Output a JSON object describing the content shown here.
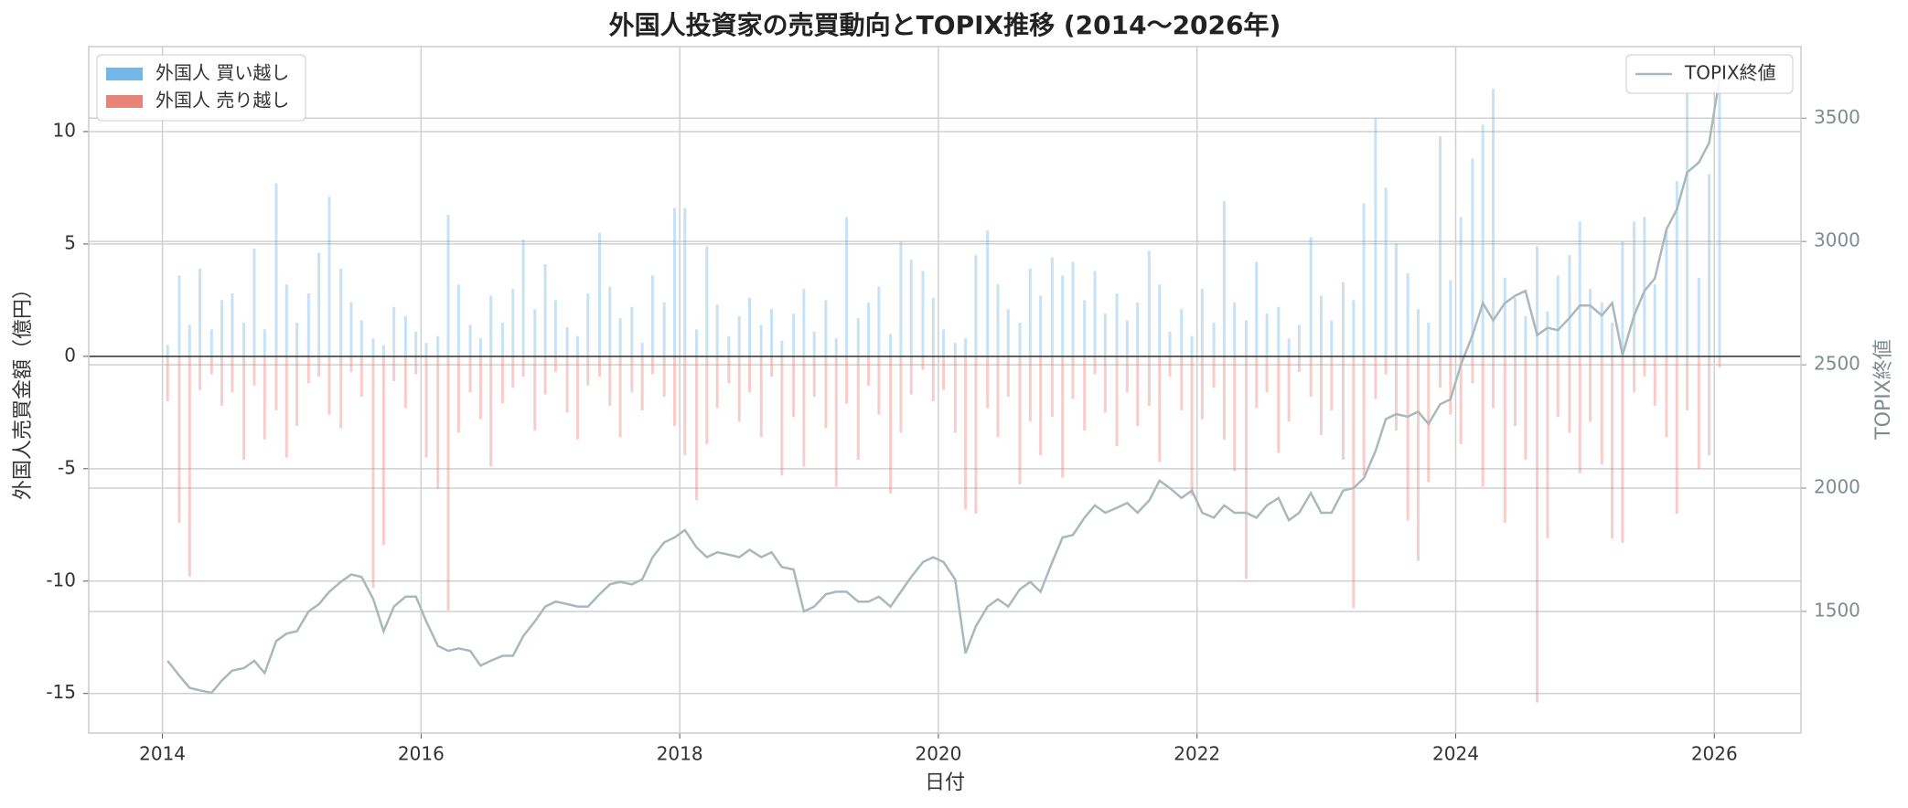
{
  "chart_data": {
    "type": "bar",
    "title": "外国人投資家の売買動向とTOPIX推移 (2014〜2026年)",
    "xlabel": "日付",
    "ylabel": "外国人売買金額（億円）",
    "y2label": "TOPIX終値",
    "x": [
      2014.04,
      2014.13,
      2014.21,
      2014.29,
      2014.38,
      2014.46,
      2014.54,
      2014.63,
      2014.71,
      2014.79,
      2014.88,
      2014.96,
      2015.04,
      2015.13,
      2015.21,
      2015.29,
      2015.38,
      2015.46,
      2015.54,
      2015.63,
      2015.71,
      2015.79,
      2015.88,
      2015.96,
      2016.04,
      2016.13,
      2016.21,
      2016.29,
      2016.38,
      2016.46,
      2016.54,
      2016.63,
      2016.71,
      2016.79,
      2016.88,
      2016.96,
      2017.04,
      2017.13,
      2017.21,
      2017.29,
      2017.38,
      2017.46,
      2017.54,
      2017.63,
      2017.71,
      2017.79,
      2017.88,
      2017.96,
      2018.04,
      2018.13,
      2018.21,
      2018.29,
      2018.38,
      2018.46,
      2018.54,
      2018.63,
      2018.71,
      2018.79,
      2018.88,
      2018.96,
      2019.04,
      2019.13,
      2019.21,
      2019.29,
      2019.38,
      2019.46,
      2019.54,
      2019.63,
      2019.71,
      2019.79,
      2019.88,
      2019.96,
      2020.04,
      2020.13,
      2020.21,
      2020.29,
      2020.38,
      2020.46,
      2020.54,
      2020.63,
      2020.71,
      2020.79,
      2020.88,
      2020.96,
      2021.04,
      2021.13,
      2021.21,
      2021.29,
      2021.38,
      2021.46,
      2021.54,
      2021.63,
      2021.71,
      2021.79,
      2021.88,
      2021.96,
      2022.04,
      2022.13,
      2022.21,
      2022.29,
      2022.38,
      2022.46,
      2022.54,
      2022.63,
      2022.71,
      2022.79,
      2022.88,
      2022.96,
      2023.04,
      2023.13,
      2023.21,
      2023.29,
      2023.38,
      2023.46,
      2023.54,
      2023.63,
      2023.71,
      2023.79,
      2023.88,
      2023.96,
      2024.04,
      2024.13,
      2024.21,
      2024.29,
      2024.38,
      2024.46,
      2024.54,
      2024.63,
      2024.71,
      2024.79,
      2024.88,
      2024.96,
      2025.04,
      2025.13,
      2025.21,
      2025.29,
      2025.38,
      2025.46,
      2025.54,
      2025.63,
      2025.71,
      2025.79,
      2025.88,
      2025.96,
      2026.04
    ],
    "xlim": [
      2013.43,
      2026.67
    ],
    "xticks": [
      2014,
      2016,
      2018,
      2020,
      2022,
      2024,
      2026
    ],
    "ylim": [
      -16.76,
      13.78
    ],
    "yticks": [
      -15,
      -10,
      -5,
      0,
      5,
      10
    ],
    "y2lim": [
      1007,
      3790
    ],
    "y2ticks": [
      1500,
      2000,
      2500,
      3000,
      3500
    ],
    "grid": true,
    "legend": "upper left",
    "legend2": "upper right",
    "series": [
      {
        "name": "外国人 買い越し",
        "color": "#74b6e6",
        "values": [
          0.5,
          3.6,
          1.4,
          3.9,
          1.2,
          2.5,
          2.8,
          1.5,
          4.8,
          1.2,
          7.7,
          3.2,
          1.5,
          2.8,
          4.6,
          7.1,
          3.9,
          2.4,
          1.6,
          0.8,
          0.5,
          2.2,
          1.8,
          1.1,
          0.6,
          0.9,
          6.3,
          3.2,
          1.4,
          0.8,
          2.7,
          1.5,
          3.0,
          5.2,
          2.1,
          4.1,
          2.5,
          1.3,
          0.9,
          2.8,
          5.5,
          3.1,
          1.7,
          2.2,
          0.6,
          3.6,
          2.4,
          6.6,
          6.6,
          1.2,
          4.9,
          2.3,
          0.9,
          1.8,
          2.6,
          1.4,
          2.1,
          0.7,
          1.9,
          3.0,
          1.1,
          2.5,
          0.8,
          6.2,
          1.7,
          2.4,
          3.1,
          1.0,
          5.1,
          4.3,
          3.8,
          2.6,
          1.2,
          0.6,
          0.8,
          4.5,
          5.6,
          3.2,
          2.1,
          1.5,
          3.9,
          2.7,
          4.4,
          3.6,
          4.2,
          2.5,
          3.8,
          1.9,
          2.8,
          1.6,
          2.4,
          4.7,
          3.2,
          1.1,
          2.1,
          0.9,
          3.0,
          1.5,
          6.9,
          2.4,
          1.6,
          4.2,
          1.9,
          2.2,
          0.8,
          1.4,
          5.3,
          2.7,
          1.6,
          3.3,
          2.5,
          6.8,
          10.6,
          7.5,
          5.0,
          3.7,
          2.1,
          1.5,
          9.8,
          3.4,
          6.2,
          8.8,
          10.3,
          11.9,
          3.5,
          2.6,
          1.8,
          4.9,
          2.0,
          3.6,
          4.5,
          6.0,
          3.0,
          2.4,
          1.5,
          5.1,
          6.0,
          6.2,
          3.2,
          5.6,
          7.8,
          11.8,
          3.5,
          8.1,
          12.0
        ]
      },
      {
        "name": "外国人 売り越し",
        "color": "#e8837a",
        "values": [
          -2.0,
          -7.4,
          -9.8,
          -1.5,
          -0.8,
          -2.2,
          -1.6,
          -4.6,
          -1.3,
          -3.7,
          -2.4,
          -4.5,
          -3.1,
          -1.2,
          -0.9,
          -2.6,
          -3.2,
          -0.7,
          -1.8,
          -10.3,
          -8.4,
          -1.1,
          -2.3,
          -0.8,
          -4.5,
          -5.9,
          -11.3,
          -3.4,
          -1.6,
          -2.8,
          -4.9,
          -2.1,
          -1.4,
          -0.9,
          -3.3,
          -1.7,
          -0.7,
          -2.5,
          -3.7,
          -1.3,
          -0.9,
          -2.2,
          -3.6,
          -1.6,
          -2.4,
          -0.8,
          -1.8,
          -3.1,
          -4.4,
          -6.4,
          -3.9,
          -2.3,
          -1.2,
          -2.9,
          -1.6,
          -3.6,
          -0.9,
          -5.3,
          -2.7,
          -4.9,
          -1.8,
          -3.2,
          -5.8,
          -2.1,
          -4.6,
          -1.3,
          -2.6,
          -6.1,
          -3.4,
          -1.7,
          -0.6,
          -2.0,
          -1.5,
          -3.4,
          -6.8,
          -7.0,
          -2.3,
          -3.6,
          -1.8,
          -5.7,
          -2.9,
          -4.4,
          -2.7,
          -5.4,
          -1.9,
          -3.3,
          -0.8,
          -2.5,
          -4.0,
          -1.6,
          -3.1,
          -2.2,
          -4.7,
          -0.9,
          -2.4,
          -6.2,
          -2.8,
          -1.4,
          -3.7,
          -5.1,
          -9.9,
          -2.3,
          -1.6,
          -4.3,
          -2.9,
          -0.7,
          -1.8,
          -3.5,
          -2.4,
          -4.6,
          -11.2,
          -5.3,
          -1.9,
          -0.8,
          -3.3,
          -7.3,
          -9.1,
          -5.6,
          -1.4,
          -2.6,
          -3.9,
          -1.2,
          -5.8,
          -2.3,
          -7.4,
          -3.1,
          -4.6,
          -15.4,
          -8.1,
          -2.7,
          -3.4,
          -5.2,
          -2.9,
          -4.8,
          -8.1,
          -8.3,
          -1.6,
          -0.9,
          -2.2,
          -3.6,
          -7.0,
          -2.4,
          -5.0,
          -4.4,
          -0.5
        ]
      },
      {
        "name": "TOPIX終値",
        "type": "line",
        "axis": "y2",
        "color": "#a9b9bb",
        "values": [
          1300,
          1240,
          1190,
          1180,
          1170,
          1220,
          1260,
          1270,
          1300,
          1250,
          1380,
          1410,
          1420,
          1500,
          1530,
          1580,
          1620,
          1650,
          1640,
          1550,
          1420,
          1520,
          1560,
          1560,
          1460,
          1360,
          1340,
          1350,
          1340,
          1280,
          1300,
          1320,
          1320,
          1400,
          1460,
          1520,
          1540,
          1530,
          1520,
          1520,
          1570,
          1610,
          1620,
          1610,
          1630,
          1720,
          1780,
          1800,
          1830,
          1760,
          1720,
          1740,
          1730,
          1720,
          1750,
          1720,
          1740,
          1680,
          1670,
          1500,
          1520,
          1570,
          1580,
          1580,
          1540,
          1540,
          1560,
          1520,
          1580,
          1640,
          1700,
          1720,
          1700,
          1630,
          1330,
          1440,
          1520,
          1550,
          1520,
          1590,
          1620,
          1580,
          1700,
          1800,
          1810,
          1880,
          1930,
          1900,
          1920,
          1940,
          1900,
          1950,
          2030,
          2000,
          1960,
          1990,
          1900,
          1880,
          1930,
          1900,
          1900,
          1880,
          1930,
          1960,
          1870,
          1900,
          1980,
          1900,
          1900,
          1990,
          2000,
          2040,
          2150,
          2280,
          2300,
          2290,
          2310,
          2260,
          2340,
          2360,
          2500,
          2620,
          2750,
          2680,
          2750,
          2780,
          2800,
          2620,
          2650,
          2640,
          2690,
          2740,
          2740,
          2700,
          2750,
          2540,
          2700,
          2800,
          2850,
          3050,
          3130,
          3280,
          3320,
          3400,
          3660
        ]
      }
    ]
  }
}
